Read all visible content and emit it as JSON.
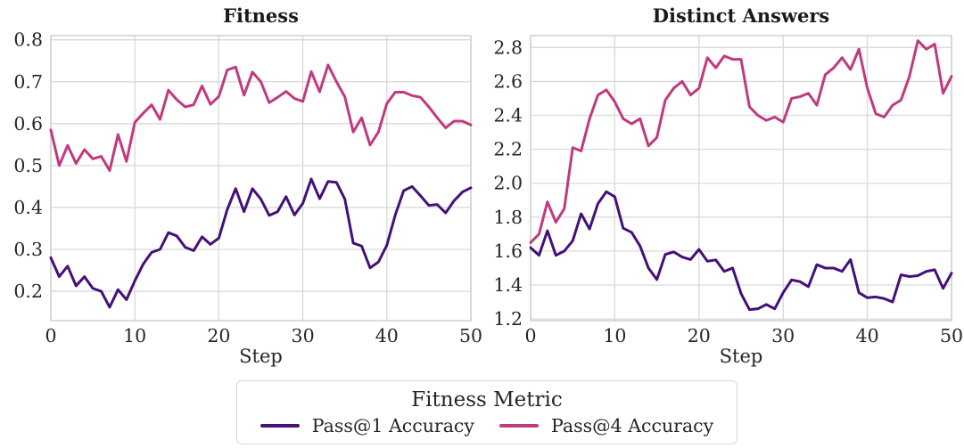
{
  "colors": {
    "pass1": "#44107a",
    "pass4": "#c03a7e",
    "grid": "#d9d9d9",
    "spine": "#c9c9c9",
    "text": "#262626",
    "title_text": "#1a1a1a",
    "background": "#ffffff"
  },
  "legend": {
    "title": "Fitness Metric",
    "entries": [
      {
        "label": "Pass@1 Accuracy",
        "color_key": "pass1"
      },
      {
        "label": "Pass@4 Accuracy",
        "color_key": "pass4"
      }
    ]
  },
  "chart_data": [
    {
      "type": "line",
      "title": "Fitness",
      "xlabel": "Step",
      "grid": true,
      "xlim": [
        0,
        50
      ],
      "ylim": [
        0.13,
        0.81
      ],
      "xtick_values": [
        0,
        10,
        20,
        30,
        40,
        50
      ],
      "xtick_labels": [
        "0",
        "10",
        "20",
        "30",
        "40",
        "50"
      ],
      "ytick_values": [
        0.2,
        0.3,
        0.4,
        0.5,
        0.6,
        0.7,
        0.8
      ],
      "ytick_labels": [
        "0.2",
        "0.3",
        "0.4",
        "0.5",
        "0.6",
        "0.7",
        "0.8"
      ],
      "x_step": 1,
      "series": [
        {
          "name": "Pass@1 Accuracy",
          "color_key": "pass1",
          "values": [
            0.28,
            0.235,
            0.26,
            0.213,
            0.235,
            0.207,
            0.2,
            0.162,
            0.204,
            0.18,
            0.225,
            0.265,
            0.293,
            0.3,
            0.34,
            0.332,
            0.305,
            0.297,
            0.33,
            0.312,
            0.327,
            0.395,
            0.445,
            0.39,
            0.445,
            0.42,
            0.381,
            0.39,
            0.426,
            0.382,
            0.41,
            0.468,
            0.421,
            0.462,
            0.46,
            0.42,
            0.315,
            0.308,
            0.256,
            0.27,
            0.31,
            0.382,
            0.44,
            0.45,
            0.428,
            0.405,
            0.407,
            0.387,
            0.416,
            0.437,
            0.447
          ]
        },
        {
          "name": "Pass@4 Accuracy",
          "color_key": "pass4",
          "values": [
            0.585,
            0.5,
            0.548,
            0.505,
            0.538,
            0.516,
            0.522,
            0.488,
            0.574,
            0.51,
            0.603,
            0.625,
            0.645,
            0.61,
            0.68,
            0.657,
            0.64,
            0.645,
            0.69,
            0.646,
            0.665,
            0.728,
            0.735,
            0.668,
            0.723,
            0.7,
            0.65,
            0.663,
            0.677,
            0.66,
            0.653,
            0.724,
            0.676,
            0.74,
            0.7,
            0.664,
            0.58,
            0.614,
            0.549,
            0.58,
            0.648,
            0.675,
            0.675,
            0.667,
            0.663,
            0.64,
            0.614,
            0.59,
            0.606,
            0.606,
            0.597
          ]
        }
      ]
    },
    {
      "type": "line",
      "title": "Distinct Answers",
      "xlabel": "Step",
      "grid": true,
      "xlim": [
        0,
        50
      ],
      "ylim": [
        1.19,
        2.87
      ],
      "xtick_values": [
        0,
        10,
        20,
        30,
        40,
        50
      ],
      "xtick_labels": [
        "0",
        "10",
        "20",
        "30",
        "40",
        "50"
      ],
      "ytick_values": [
        1.2,
        1.4,
        1.6,
        1.8,
        2.0,
        2.2,
        2.4,
        2.6,
        2.8
      ],
      "ytick_labels": [
        "1.2",
        "1.4",
        "1.6",
        "1.8",
        "2.0",
        "2.2",
        "2.4",
        "2.6",
        "2.8"
      ],
      "x_step": 1,
      "series": [
        {
          "name": "Pass@1 Accuracy",
          "color_key": "pass1",
          "values": [
            1.62,
            1.575,
            1.72,
            1.575,
            1.6,
            1.66,
            1.82,
            1.73,
            1.88,
            1.95,
            1.92,
            1.735,
            1.71,
            1.63,
            1.5,
            1.432,
            1.58,
            1.595,
            1.565,
            1.55,
            1.61,
            1.54,
            1.548,
            1.48,
            1.5,
            1.35,
            1.255,
            1.26,
            1.285,
            1.26,
            1.355,
            1.43,
            1.42,
            1.39,
            1.52,
            1.5,
            1.5,
            1.48,
            1.55,
            1.355,
            1.325,
            1.33,
            1.32,
            1.3,
            1.46,
            1.45,
            1.455,
            1.48,
            1.49,
            1.38,
            1.47
          ]
        },
        {
          "name": "Pass@4 Accuracy",
          "color_key": "pass4",
          "values": [
            1.65,
            1.7,
            1.89,
            1.77,
            1.85,
            2.21,
            2.19,
            2.38,
            2.52,
            2.55,
            2.48,
            2.38,
            2.35,
            2.38,
            2.22,
            2.27,
            2.49,
            2.56,
            2.6,
            2.52,
            2.56,
            2.74,
            2.68,
            2.75,
            2.73,
            2.73,
            2.45,
            2.4,
            2.37,
            2.39,
            2.36,
            2.5,
            2.51,
            2.53,
            2.46,
            2.64,
            2.68,
            2.74,
            2.67,
            2.79,
            2.56,
            2.41,
            2.39,
            2.46,
            2.49,
            2.63,
            2.84,
            2.79,
            2.82,
            2.53,
            2.63
          ]
        }
      ]
    }
  ]
}
